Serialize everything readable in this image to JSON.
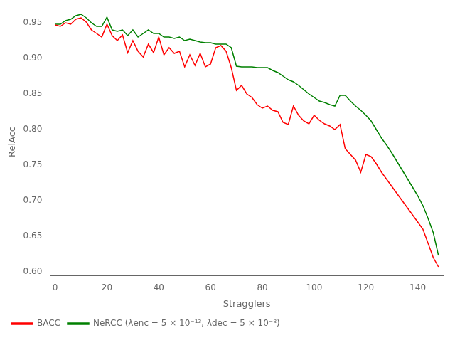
{
  "chart_data": {
    "type": "line",
    "x": [
      0,
      2,
      4,
      6,
      8,
      10,
      12,
      14,
      16,
      18,
      20,
      22,
      24,
      26,
      28,
      30,
      32,
      34,
      36,
      38,
      40,
      42,
      44,
      46,
      48,
      50,
      52,
      54,
      56,
      58,
      60,
      62,
      64,
      66,
      68,
      70,
      72,
      74,
      76,
      78,
      80,
      82,
      84,
      86,
      88,
      90,
      92,
      94,
      96,
      98,
      100,
      102,
      104,
      106,
      108,
      110,
      112,
      114,
      116,
      118,
      120,
      122,
      124,
      126,
      128,
      130,
      132,
      134,
      136,
      138,
      140,
      142,
      144,
      146,
      148
    ],
    "series": [
      {
        "name": "BACC",
        "color": "red",
        "values": [
          0.947,
          0.945,
          0.95,
          0.948,
          0.955,
          0.957,
          0.951,
          0.94,
          0.935,
          0.93,
          0.948,
          0.932,
          0.925,
          0.933,
          0.908,
          0.925,
          0.91,
          0.902,
          0.92,
          0.908,
          0.93,
          0.905,
          0.915,
          0.907,
          0.91,
          0.888,
          0.905,
          0.89,
          0.907,
          0.888,
          0.892,
          0.915,
          0.918,
          0.91,
          0.887,
          0.855,
          0.862,
          0.85,
          0.845,
          0.835,
          0.83,
          0.833,
          0.827,
          0.825,
          0.81,
          0.807,
          0.833,
          0.82,
          0.812,
          0.808,
          0.82,
          0.813,
          0.808,
          0.805,
          0.8,
          0.807,
          0.773,
          0.765,
          0.757,
          0.74,
          0.765,
          0.762,
          0.752,
          0.74,
          0.73,
          0.72,
          0.71,
          0.7,
          0.69,
          0.68,
          0.67,
          0.66,
          0.64,
          0.62,
          0.607
        ]
      },
      {
        "name": "NeRCC (λenc = 5 × 10⁻¹³, λdec = 5 × 10⁻⁸)",
        "color": "green",
        "values": [
          0.948,
          0.948,
          0.953,
          0.955,
          0.96,
          0.962,
          0.957,
          0.95,
          0.945,
          0.945,
          0.958,
          0.94,
          0.938,
          0.94,
          0.932,
          0.94,
          0.93,
          0.935,
          0.94,
          0.935,
          0.935,
          0.93,
          0.93,
          0.928,
          0.93,
          0.925,
          0.927,
          0.925,
          0.923,
          0.922,
          0.922,
          0.92,
          0.92,
          0.92,
          0.915,
          0.889,
          0.888,
          0.888,
          0.888,
          0.887,
          0.887,
          0.887,
          0.883,
          0.88,
          0.875,
          0.87,
          0.867,
          0.862,
          0.856,
          0.85,
          0.845,
          0.84,
          0.838,
          0.835,
          0.833,
          0.848,
          0.848,
          0.84,
          0.833,
          0.827,
          0.82,
          0.812,
          0.8,
          0.788,
          0.778,
          0.767,
          0.755,
          0.743,
          0.731,
          0.719,
          0.707,
          0.693,
          0.675,
          0.655,
          0.623
        ]
      }
    ],
    "xlabel": "Stragglers",
    "ylabel": "RelAcc",
    "xlim": [
      -2,
      150
    ],
    "ylim": [
      0.595,
      0.97
    ],
    "xticks": [
      0,
      20,
      40,
      60,
      80,
      100,
      120,
      140
    ],
    "yticks": [
      {
        "value": 0.6,
        "label": "0.60"
      },
      0.65,
      {
        "value": 0.7,
        "label": "0.70"
      },
      0.75,
      {
        "value": 0.8,
        "label": "0.80"
      },
      0.85,
      {
        "value": 0.9,
        "label": "0.90"
      },
      0.95
    ],
    "grid": false,
    "legend": "lower left"
  }
}
